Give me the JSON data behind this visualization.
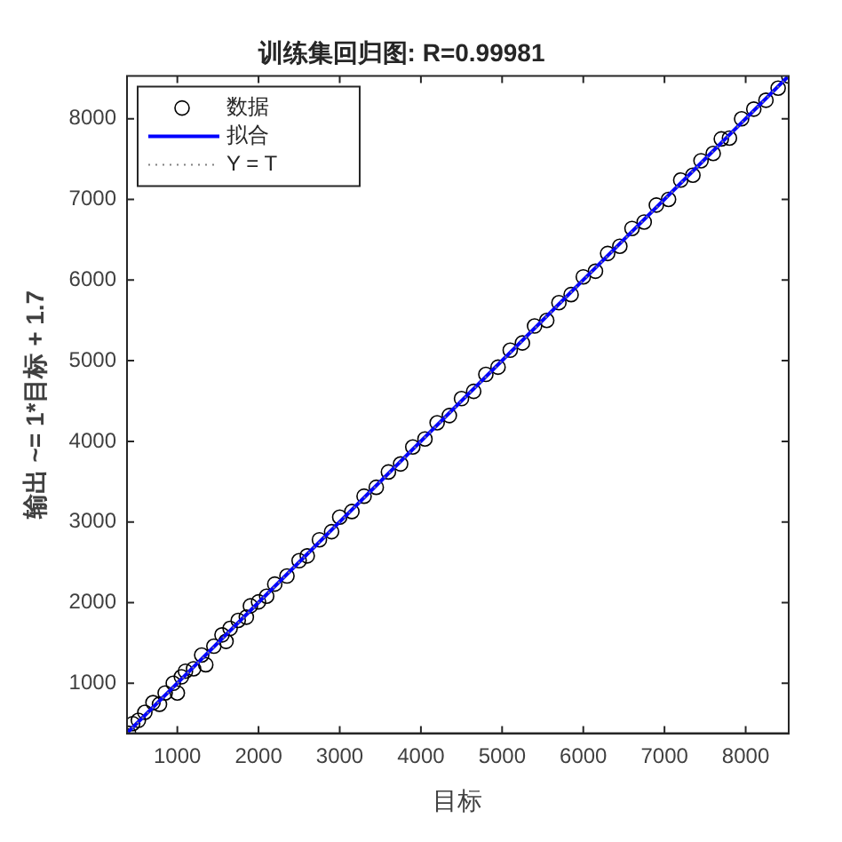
{
  "chart_data": {
    "type": "scatter",
    "title": "训练集回归图: R=0.99981",
    "xlabel": "目标",
    "ylabel": "输出 ~= 1*目标 + 1.7",
    "xlim": [
      380,
      8530
    ],
    "ylim": [
      380,
      8530
    ],
    "xticks": [
      1000,
      2000,
      3000,
      4000,
      5000,
      6000,
      7000,
      8000
    ],
    "yticks": [
      1000,
      2000,
      3000,
      4000,
      5000,
      6000,
      7000,
      8000
    ],
    "grid": false,
    "legend": "top left",
    "marker": "circle",
    "series": [
      {
        "name": "数据",
        "color": "#000000",
        "x": [
          400,
          450,
          520,
          600,
          700,
          780,
          850,
          950,
          1000,
          1050,
          1100,
          1200,
          1300,
          1350,
          1450,
          1550,
          1600,
          1650,
          1750,
          1850,
          1900,
          2000,
          2100,
          2200,
          2350,
          2500,
          2600,
          2750,
          2900,
          3000,
          3150,
          3300,
          3450,
          3600,
          3750,
          3900,
          4050,
          4200,
          4350,
          4500,
          4650,
          4800,
          4950,
          5100,
          5250,
          5400,
          5550,
          5700,
          5850,
          6000,
          6150,
          6300,
          6450,
          6600,
          6750,
          6900,
          7050,
          7200,
          7350,
          7450,
          7600,
          7700,
          7800,
          7950,
          8100,
          8250,
          8400,
          8530
        ],
        "values": [
          380,
          500,
          540,
          640,
          760,
          740,
          880,
          1000,
          880,
          1080,
          1150,
          1180,
          1350,
          1230,
          1460,
          1600,
          1520,
          1680,
          1780,
          1820,
          1960,
          2010,
          2080,
          2230,
          2330,
          2520,
          2580,
          2780,
          2880,
          3060,
          3130,
          3320,
          3430,
          3620,
          3720,
          3930,
          4030,
          4230,
          4320,
          4530,
          4620,
          4830,
          4920,
          5130,
          5220,
          5430,
          5500,
          5720,
          5820,
          6040,
          6110,
          6330,
          6420,
          6640,
          6720,
          6930,
          7000,
          7240,
          7300,
          7480,
          7570,
          7750,
          7760,
          8000,
          8120,
          8230,
          8380,
          8530
        ]
      },
      {
        "name": "拟合",
        "type": "line",
        "color": "#0000ff",
        "line_style": "solid",
        "marker": "none",
        "x": [
          380,
          8520
        ],
        "values": [
          382,
          8522
        ]
      },
      {
        "name": "Y = T",
        "type": "line",
        "color": "#808080",
        "line_style": "dotted",
        "marker": "none",
        "x": [
          380,
          8530
        ],
        "values": [
          380,
          8530
        ]
      }
    ]
  }
}
